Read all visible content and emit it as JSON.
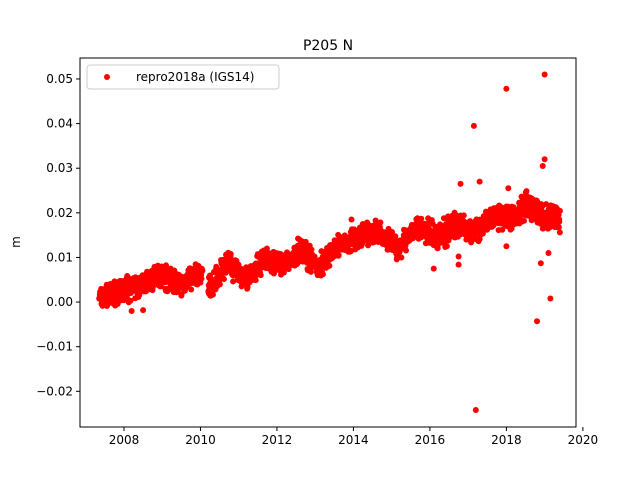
{
  "chart_data": {
    "type": "scatter",
    "title": "P205 N",
    "xlabel": "",
    "ylabel": "m",
    "xlim": [
      2006.85,
      2019.82
    ],
    "ylim": [
      -0.028,
      0.0547
    ],
    "xticks": [
      2008,
      2010,
      2012,
      2014,
      2016,
      2018,
      2020
    ],
    "xtick_labels": [
      "2008",
      "2010",
      "2012",
      "2014",
      "2016",
      "2018",
      "2020"
    ],
    "yticks": [
      -0.02,
      -0.01,
      0.0,
      0.01,
      0.02,
      0.03,
      0.04,
      0.05
    ],
    "ytick_labels": [
      "−0.02",
      "−0.01",
      "0.00",
      "0.01",
      "0.02",
      "0.03",
      "0.04",
      "0.05"
    ],
    "grid": false,
    "legend_position": "top-left",
    "series": [
      {
        "name": "repro2018a (IGS14)",
        "color": "#ff0000",
        "marker": "circle",
        "envelope_note_columns": [
          "year",
          "low",
          "high"
        ],
        "envelope": [
          [
            2007.35,
            -0.002,
            0.004
          ],
          [
            2008.0,
            -0.001,
            0.006
          ],
          [
            2008.5,
            0.001,
            0.007
          ],
          [
            2008.9,
            0.003,
            0.0095
          ],
          [
            2009.5,
            0.001,
            0.007
          ],
          [
            2010.05,
            0.004,
            0.01
          ],
          [
            2010.2,
            0.0,
            0.006
          ],
          [
            2010.7,
            0.005,
            0.012
          ],
          [
            2011.2,
            0.002,
            0.008
          ],
          [
            2011.7,
            0.007,
            0.013
          ],
          [
            2012.2,
            0.005,
            0.011
          ],
          [
            2012.6,
            0.008,
            0.015
          ],
          [
            2013.1,
            0.005,
            0.011
          ],
          [
            2013.6,
            0.01,
            0.016
          ],
          [
            2014.0,
            0.011,
            0.017
          ],
          [
            2014.6,
            0.013,
            0.019
          ],
          [
            2015.2,
            0.009,
            0.015
          ],
          [
            2015.6,
            0.014,
            0.02
          ],
          [
            2016.2,
            0.011,
            0.018
          ],
          [
            2016.7,
            0.014,
            0.021
          ],
          [
            2017.2,
            0.013,
            0.019
          ],
          [
            2017.6,
            0.016,
            0.022
          ],
          [
            2018.1,
            0.015,
            0.022
          ],
          [
            2018.5,
            0.018,
            0.026
          ],
          [
            2018.9,
            0.016,
            0.023
          ],
          [
            2019.4,
            0.015,
            0.022
          ]
        ],
        "outliers": [
          [
            2017.15,
            0.0395
          ],
          [
            2018.0,
            0.0478
          ],
          [
            2019.0,
            0.051
          ],
          [
            2017.2,
            -0.0242
          ],
          [
            2018.8,
            -0.0043
          ],
          [
            2019.15,
            0.0008
          ],
          [
            2018.9,
            0.0087
          ],
          [
            2019.1,
            0.011
          ],
          [
            2018.95,
            0.0305
          ],
          [
            2019.0,
            0.032
          ],
          [
            2016.75,
            0.0084
          ],
          [
            2016.8,
            0.0265
          ],
          [
            2017.3,
            0.027
          ],
          [
            2018.0,
            0.0125
          ],
          [
            2016.1,
            0.0075
          ],
          [
            2008.2,
            -0.002
          ],
          [
            2008.5,
            -0.0018
          ],
          [
            2018.05,
            0.0255
          ],
          [
            2016.75,
            0.0102
          ],
          [
            2013.95,
            0.0185
          ]
        ]
      }
    ]
  }
}
